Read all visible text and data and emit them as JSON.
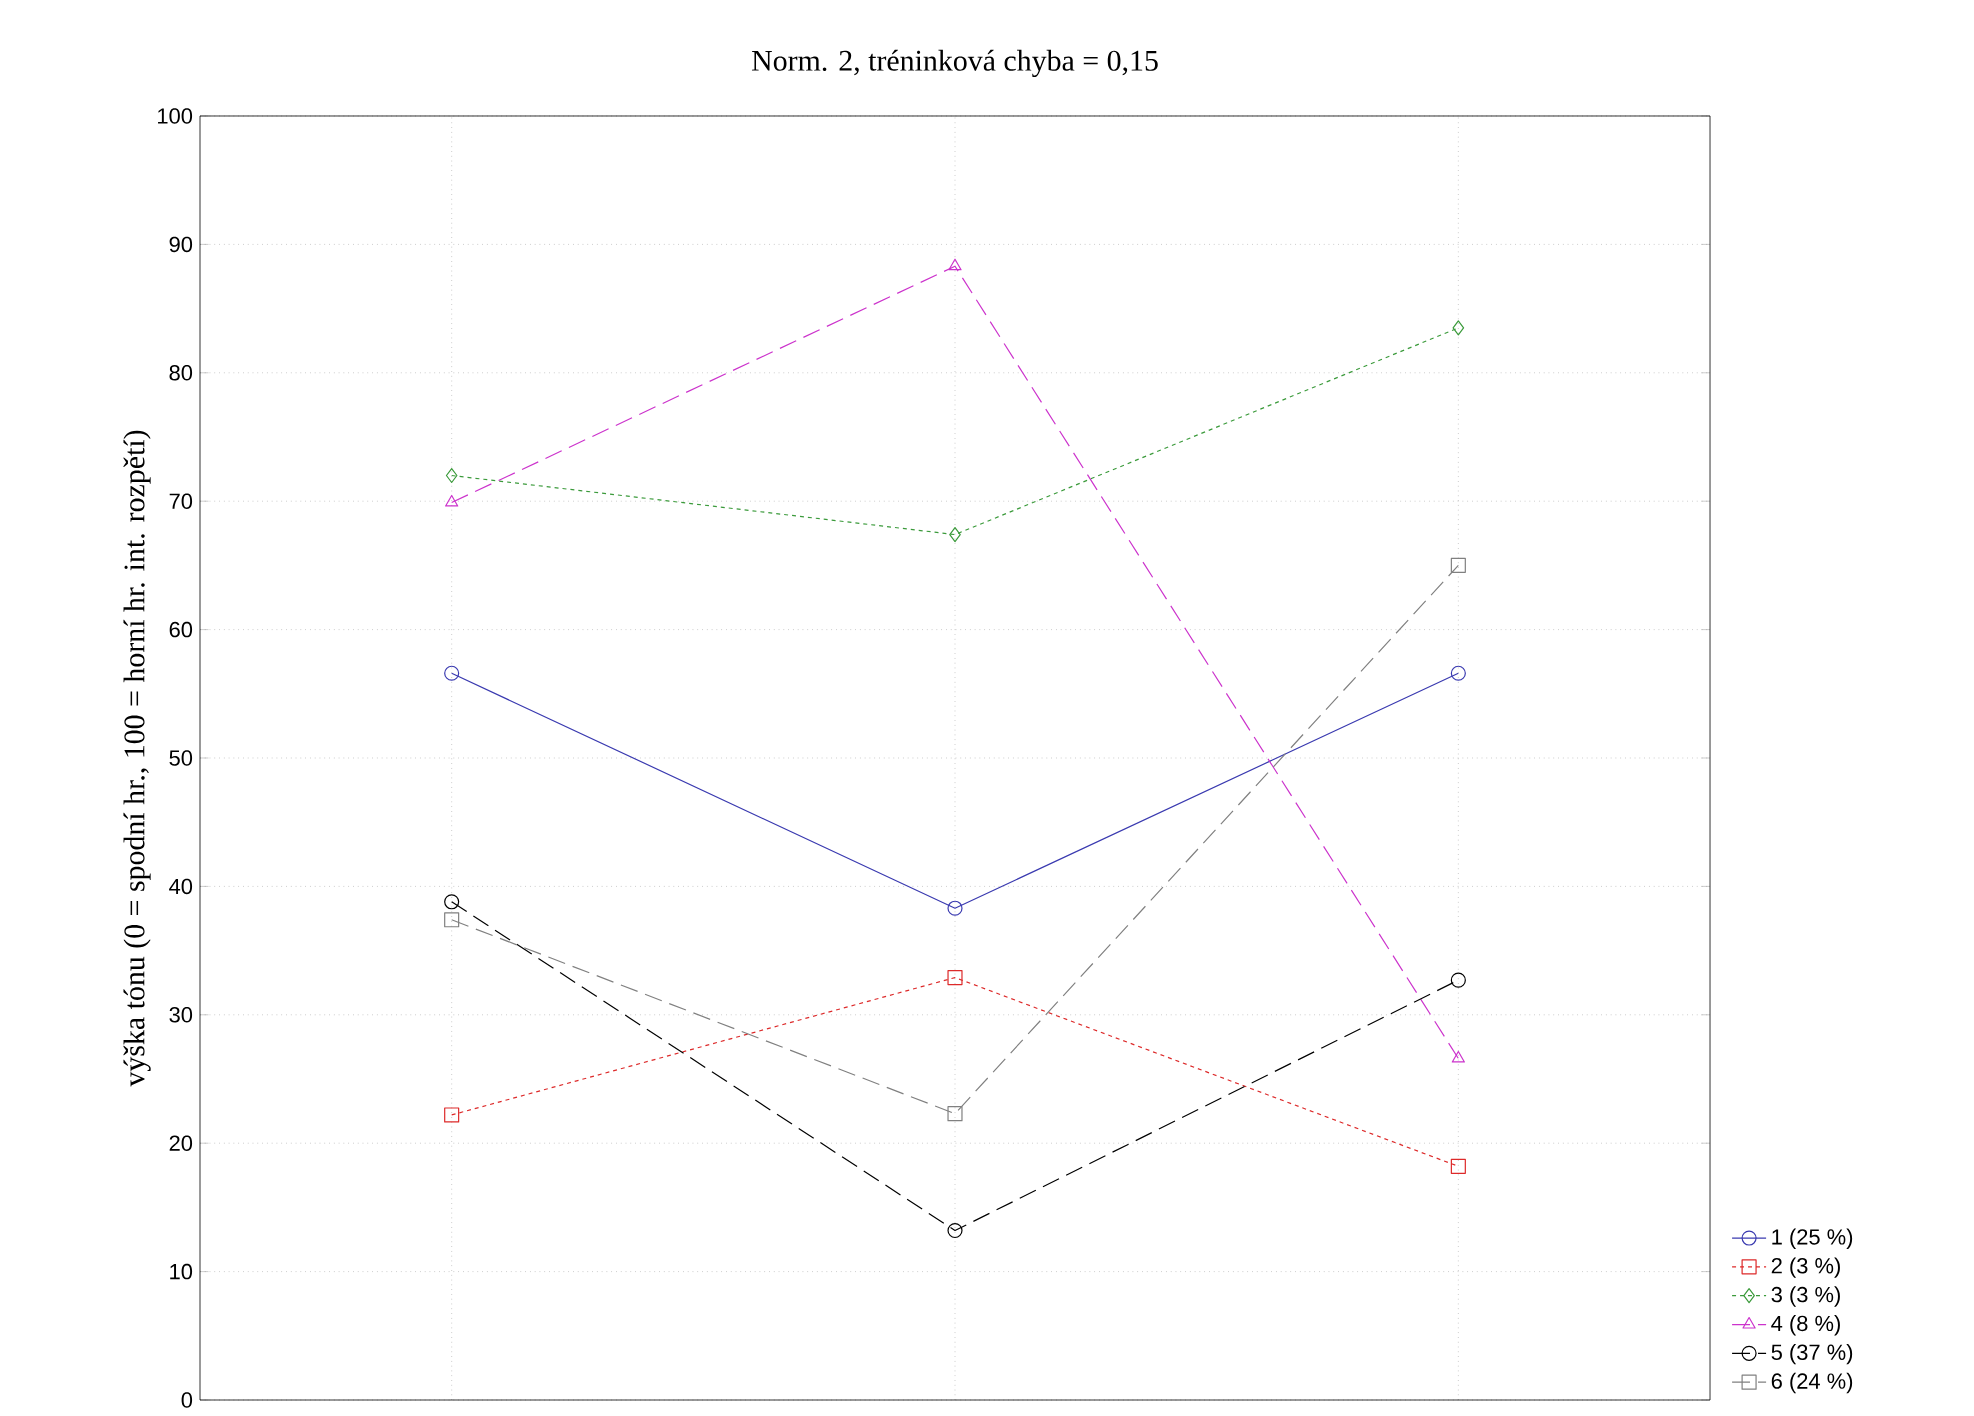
{
  "chart_data": {
    "type": "line",
    "title": "Norm. 2, tréninková chyba = 0,15",
    "ylabel": "výška tónu (0 = spodní hr., 100 = horní hr. int. rozpětí)",
    "categories": [
      null,
      null,
      null
    ],
    "series": [
      {
        "name": "1 (25 %)",
        "color": "#3a3ab0",
        "values": [
          56.6,
          38.3,
          56.6
        ],
        "marker": "circle",
        "line_style": "solid"
      },
      {
        "name": "2 (3 %)",
        "color": "#dd2a2a",
        "values": [
          22.2,
          32.9,
          18.2
        ],
        "marker": "square",
        "line_style": "dotted"
      },
      {
        "name": "3 (3 %)",
        "color": "#3a9a3a",
        "values": [
          72.0,
          67.4,
          83.5
        ],
        "marker": "diamond",
        "line_style": "dotted"
      },
      {
        "name": "4 (8 %)",
        "color": "#cc33cc",
        "values": [
          69.9,
          88.3,
          26.6
        ],
        "marker": "triangle",
        "line_style": "dashed"
      },
      {
        "name": "5 (37 %)",
        "color": "#000000",
        "values": [
          38.8,
          13.2,
          32.7
        ],
        "marker": "circle",
        "line_style": "dashed"
      },
      {
        "name": "6 (24 %)",
        "color": "#808080",
        "values": [
          37.4,
          22.3,
          65.0
        ],
        "marker": "square",
        "line_style": "dashed"
      }
    ],
    "ylim": [
      0,
      100
    ],
    "yticks": [
      0,
      10,
      20,
      30,
      40,
      50,
      60,
      70,
      80,
      90,
      100
    ],
    "grid": true,
    "legend": "bottom right"
  }
}
